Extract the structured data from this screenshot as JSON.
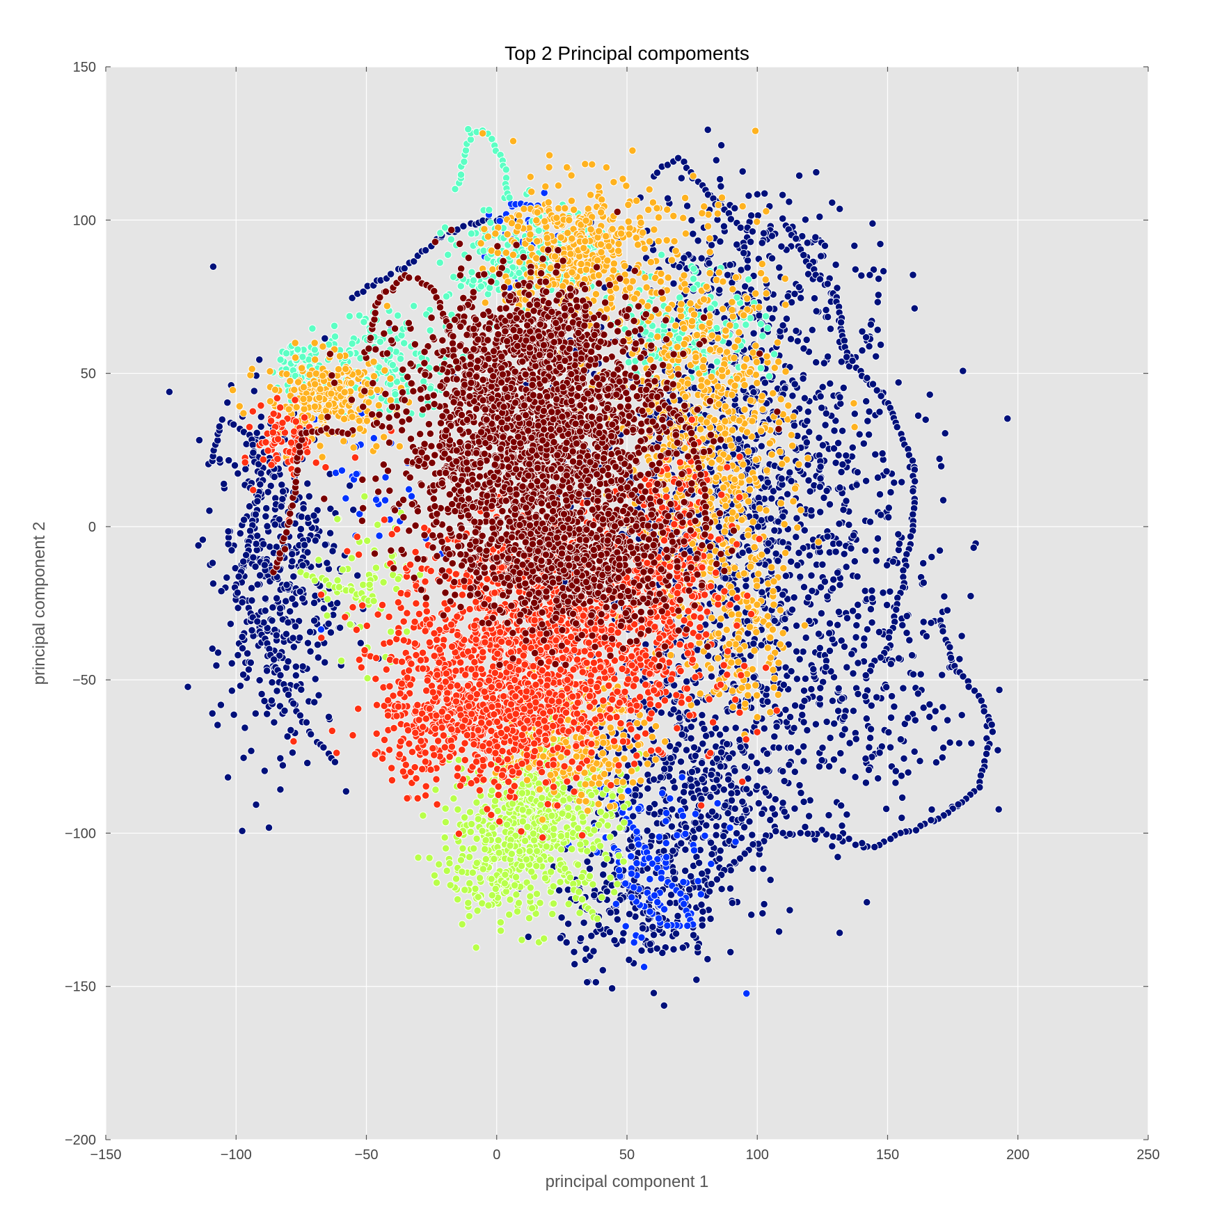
{
  "chart_data": {
    "type": "scatter",
    "title": "Top 2 Principal compoments",
    "xlabel": "principal component 1",
    "ylabel": "principal component 2",
    "xlim": [
      -150,
      250
    ],
    "ylim": [
      -200,
      150
    ],
    "xticks": [
      -150,
      -100,
      -50,
      0,
      50,
      100,
      150,
      200,
      250
    ],
    "yticks": [
      -200,
      -150,
      -100,
      -50,
      0,
      50,
      100,
      150
    ],
    "xtick_labels": [
      "−150",
      "−100",
      "−50",
      "0",
      "50",
      "100",
      "150",
      "200",
      "250"
    ],
    "ytick_labels": [
      "−200",
      "−150",
      "−100",
      "−50",
      "0",
      "50",
      "100",
      "150"
    ],
    "grid": true,
    "background_color": "#e5e5e5",
    "marker_edge_color": "#ffffff",
    "series": [
      {
        "color": "#00107a",
        "clusters": [
          {
            "cx": 95,
            "cy": 5,
            "sx": 32,
            "sy": 38,
            "n": 1300
          },
          {
            "cx": 75,
            "cy": -85,
            "sx": 20,
            "sy": 22,
            "n": 500
          },
          {
            "cx": -85,
            "cy": -15,
            "sx": 12,
            "sy": 28,
            "n": 450
          },
          {
            "cx": 140,
            "cy": -55,
            "sx": 22,
            "sy": 22,
            "n": 200
          },
          {
            "cx": 95,
            "cy": 85,
            "sx": 20,
            "sy": 16,
            "n": 200
          },
          {
            "cx": 55,
            "cy": -125,
            "sx": 15,
            "sy": 10,
            "n": 200
          }
        ],
        "paths": [
          [
            [
              110,
              100
            ],
            [
              120,
              85
            ],
            [
              130,
              75
            ],
            [
              135,
              55
            ],
            [
              150,
              40
            ],
            [
              160,
              20
            ],
            [
              160,
              0
            ],
            [
              155,
              -20
            ],
            [
              150,
              -40
            ],
            [
              140,
              -50
            ]
          ],
          [
            [
              60,
              115
            ],
            [
              70,
              120
            ],
            [
              80,
              110
            ],
            [
              90,
              100
            ],
            [
              100,
              95
            ]
          ],
          [
            [
              170,
              -30
            ],
            [
              175,
              -45
            ],
            [
              185,
              -55
            ],
            [
              190,
              -65
            ],
            [
              185,
              -85
            ],
            [
              170,
              -95
            ],
            [
              155,
              -100
            ],
            [
              145,
              -105
            ],
            [
              125,
              -100
            ],
            [
              105,
              -100
            ],
            [
              90,
              -110
            ],
            [
              80,
              -120
            ]
          ],
          [
            [
              -55,
              75
            ],
            [
              -35,
              85
            ],
            [
              -20,
              95
            ],
            [
              -5,
              100
            ],
            [
              10,
              100
            ]
          ],
          [
            [
              -110,
              20
            ],
            [
              -105,
              35
            ],
            [
              -95,
              30
            ],
            [
              -90,
              15
            ],
            [
              -95,
              -5
            ],
            [
              -100,
              -20
            ],
            [
              -90,
              -35
            ],
            [
              -80,
              -55
            ],
            [
              -70,
              -70
            ],
            [
              -60,
              -78
            ]
          ]
        ]
      },
      {
        "color": "#0033ff",
        "clusters": [
          {
            "cx": 60,
            "cy": -110,
            "sx": 14,
            "sy": 14,
            "n": 80
          },
          {
            "cx": 10,
            "cy": 90,
            "sx": 8,
            "sy": 8,
            "n": 40
          },
          {
            "cx": -45,
            "cy": 20,
            "sx": 10,
            "sy": 20,
            "n": 40
          }
        ],
        "paths": [
          [
            [
              40,
              -85
            ],
            [
              50,
              -95
            ],
            [
              60,
              -110
            ],
            [
              70,
              -120
            ],
            [
              75,
              -130
            ],
            [
              65,
              -130
            ],
            [
              50,
              -120
            ]
          ],
          [
            [
              5,
              105
            ],
            [
              15,
              105
            ]
          ]
        ]
      },
      {
        "color": "#5cffc4",
        "clusters": [
          {
            "cx": 10,
            "cy": 85,
            "sx": 14,
            "sy": 9,
            "n": 220
          },
          {
            "cx": -40,
            "cy": 55,
            "sx": 14,
            "sy": 8,
            "n": 130
          },
          {
            "cx": -75,
            "cy": 52,
            "sx": 6,
            "sy": 4,
            "n": 60
          },
          {
            "cx": 75,
            "cy": 65,
            "sx": 14,
            "sy": 10,
            "n": 150
          }
        ],
        "paths": [
          [
            [
              -15,
              110
            ],
            [
              -10,
              130
            ],
            [
              -3,
              128
            ],
            [
              3,
              118
            ],
            [
              5,
              105
            ]
          ]
        ]
      },
      {
        "color": "#b8ff4a",
        "clusters": [
          {
            "cx": 15,
            "cy": -95,
            "sx": 16,
            "sy": 12,
            "n": 550
          },
          {
            "cx": 0,
            "cy": -115,
            "sx": 10,
            "sy": 8,
            "n": 120
          },
          {
            "cx": -50,
            "cy": -20,
            "sx": 10,
            "sy": 12,
            "n": 60
          }
        ],
        "paths": [
          [
            [
              -75,
              -15
            ],
            [
              -60,
              -20
            ],
            [
              -45,
              -25
            ]
          ],
          [
            [
              25,
              -110
            ],
            [
              35,
              -125
            ],
            [
              40,
              -130
            ]
          ]
        ]
      },
      {
        "color": "#ffb21f",
        "clusters": [
          {
            "cx": 80,
            "cy": 30,
            "sx": 16,
            "sy": 30,
            "n": 700
          },
          {
            "cx": 30,
            "cy": 90,
            "sx": 15,
            "sy": 12,
            "n": 400
          },
          {
            "cx": -65,
            "cy": 42,
            "sx": 12,
            "sy": 7,
            "n": 250
          },
          {
            "cx": 30,
            "cy": -70,
            "sx": 14,
            "sy": 10,
            "n": 220
          },
          {
            "cx": 95,
            "cy": -35,
            "sx": 8,
            "sy": 15,
            "n": 120
          }
        ],
        "paths": []
      },
      {
        "color": "#ff3012",
        "clusters": [
          {
            "cx": 15,
            "cy": -40,
            "sx": 28,
            "sy": 20,
            "n": 1400
          },
          {
            "cx": -10,
            "cy": -65,
            "sx": 18,
            "sy": 10,
            "n": 400
          },
          {
            "cx": 65,
            "cy": -15,
            "sx": 12,
            "sy": 18,
            "n": 300
          },
          {
            "cx": -80,
            "cy": 28,
            "sx": 6,
            "sy": 6,
            "n": 80
          }
        ],
        "paths": []
      },
      {
        "color": "#7a0000",
        "clusters": [
          {
            "cx": 15,
            "cy": 30,
            "sx": 26,
            "sy": 22,
            "n": 2200
          },
          {
            "cx": 30,
            "cy": -12,
            "sx": 22,
            "sy": 12,
            "n": 700
          },
          {
            "cx": 20,
            "cy": 65,
            "sx": 10,
            "sy": 6,
            "n": 200
          }
        ],
        "paths": [
          [
            [
              -85,
              -15
            ],
            [
              -80,
              0
            ],
            [
              -77,
              15
            ],
            [
              -75,
              30
            ],
            [
              -65,
              32
            ],
            [
              -55,
              30
            ]
          ],
          [
            [
              -50,
              55
            ],
            [
              -45,
              75
            ],
            [
              -35,
              82
            ],
            [
              -25,
              78
            ],
            [
              -18,
              65
            ],
            [
              -15,
              50
            ]
          ],
          [
            [
              55,
              45
            ],
            [
              65,
              40
            ],
            [
              75,
              30
            ],
            [
              80,
              10
            ],
            [
              80,
              -5
            ]
          ]
        ]
      }
    ]
  }
}
